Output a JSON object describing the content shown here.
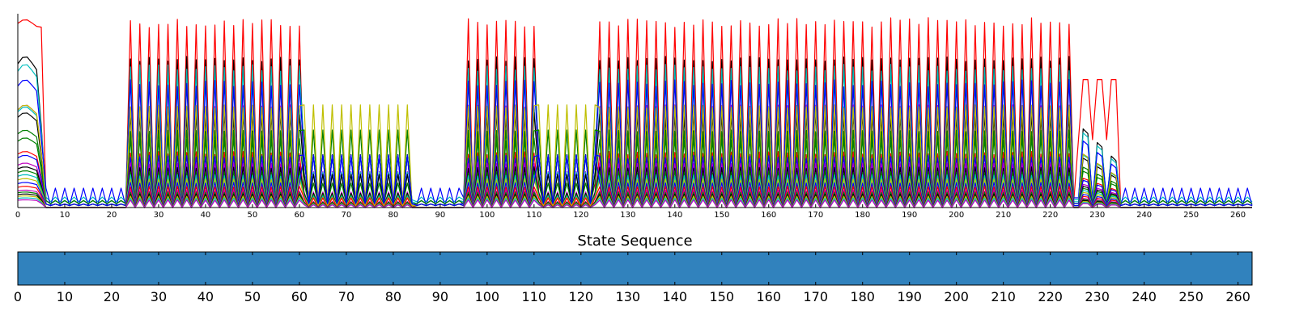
{
  "chart_data": [
    {
      "type": "line",
      "title": "",
      "xlabel": "",
      "ylabel": "",
      "xlim": [
        0,
        263
      ],
      "ylim": [
        0,
        1
      ],
      "x_ticks": [
        0,
        10,
        20,
        30,
        40,
        50,
        60,
        70,
        80,
        90,
        100,
        110,
        120,
        130,
        140,
        150,
        160,
        170,
        180,
        190,
        200,
        210,
        220,
        230,
        240,
        250,
        260
      ],
      "y_ticks_shown": false,
      "grid": false,
      "legend": "none",
      "series_colors": [
        "#ff0000",
        "#00bfbf",
        "#0000ff",
        "#bf00bf",
        "#000000",
        "#008000",
        "#bfbf00",
        "#ff7f0e",
        "#17becf",
        "#8c564b"
      ],
      "series": [
        {
          "color": "#ff0000",
          "peak": 0.98,
          "base": 0.03,
          "rest": 0.02
        },
        {
          "color": "#000000",
          "peak": 0.78,
          "base": 0.02,
          "rest": 0.02
        },
        {
          "color": "#00bfbf",
          "peak": 0.74,
          "base": 0.04,
          "rest": 0.03
        },
        {
          "color": "#0000ff",
          "peak": 0.66,
          "base": 0.05,
          "rest": 0.06
        },
        {
          "color": "#bf00bf",
          "peak": 0.53,
          "base": 0.02,
          "rest": 0.01
        },
        {
          "color": "#00bfbf",
          "peak": 0.52,
          "base": 0.03,
          "rest": 0.02
        },
        {
          "color": "#000000",
          "peak": 0.49,
          "base": 0.01,
          "rest": 0.01
        },
        {
          "color": "#008000",
          "peak": 0.4,
          "base": 0.02,
          "rest": 0.02
        },
        {
          "color": "#bfbf00",
          "peak": 0.53,
          "base": 0.01,
          "rest": 0.01
        },
        {
          "color": "#008000",
          "peak": 0.36,
          "base": 0.02,
          "rest": 0.01
        },
        {
          "color": "#ff0000",
          "peak": 0.29,
          "base": 0.01,
          "rest": 0.01
        },
        {
          "color": "#0000ff",
          "peak": 0.27,
          "base": 0.02,
          "rest": 0.01
        },
        {
          "color": "#bf00bf",
          "peak": 0.23,
          "base": 0.01,
          "rest": 0.01
        },
        {
          "color": "#000000",
          "peak": 0.21,
          "base": 0.01,
          "rest": 0.01
        },
        {
          "color": "#008000",
          "peak": 0.19,
          "base": 0.01,
          "rest": 0.01
        },
        {
          "color": "#00bfbf",
          "peak": 0.17,
          "base": 0.01,
          "rest": 0.01
        },
        {
          "color": "#bfbf00",
          "peak": 0.15,
          "base": 0.01,
          "rest": 0.01
        },
        {
          "color": "#0000ff",
          "peak": 0.13,
          "base": 0.01,
          "rest": 0.01
        },
        {
          "color": "#ff0000",
          "peak": 0.11,
          "base": 0.0,
          "rest": 0.0
        },
        {
          "color": "#bf00bf",
          "peak": 0.09,
          "base": 0.0,
          "rest": 0.0
        },
        {
          "color": "#008000",
          "peak": 0.08,
          "base": 0.0,
          "rest": 0.0
        },
        {
          "color": "#000000",
          "peak": 0.07,
          "base": 0.0,
          "rest": 0.0
        },
        {
          "color": "#bfbf00",
          "peak": 0.06,
          "base": 0.0,
          "rest": 0.0
        },
        {
          "color": "#00bfbf",
          "peak": 0.05,
          "base": 0.0,
          "rest": 0.0
        },
        {
          "color": "#bf00bf",
          "peak": 0.04,
          "base": 0.0,
          "rest": 0.0
        }
      ],
      "segments": [
        {
          "from": 0,
          "to": 6,
          "kind": "plateau"
        },
        {
          "from": 6,
          "to": 24,
          "kind": "rest"
        },
        {
          "from": 24,
          "to": 61,
          "kind": "oscillate",
          "period": 2
        },
        {
          "from": 61,
          "to": 85,
          "kind": "yellow-green",
          "period": 2
        },
        {
          "from": 85,
          "to": 95,
          "kind": "rest"
        },
        {
          "from": 95,
          "to": 111,
          "kind": "oscillate",
          "period": 2
        },
        {
          "from": 111,
          "to": 124,
          "kind": "yellow-green",
          "period": 2
        },
        {
          "from": 124,
          "to": 226,
          "kind": "oscillate",
          "period": 2
        },
        {
          "from": 226,
          "to": 235,
          "kind": "decay"
        },
        {
          "from": 235,
          "to": 263,
          "kind": "rest"
        }
      ]
    },
    {
      "type": "heatmap",
      "title": "State Sequence",
      "xlim": [
        0,
        263
      ],
      "x_ticks": [
        0,
        10,
        20,
        30,
        40,
        50,
        60,
        70,
        80,
        90,
        100,
        110,
        120,
        130,
        140,
        150,
        160,
        170,
        180,
        190,
        200,
        210,
        220,
        230,
        240,
        250,
        260
      ],
      "states": [
        {
          "from": 0,
          "to": 263,
          "state": 0,
          "color": "#3182bd"
        }
      ]
    }
  ]
}
